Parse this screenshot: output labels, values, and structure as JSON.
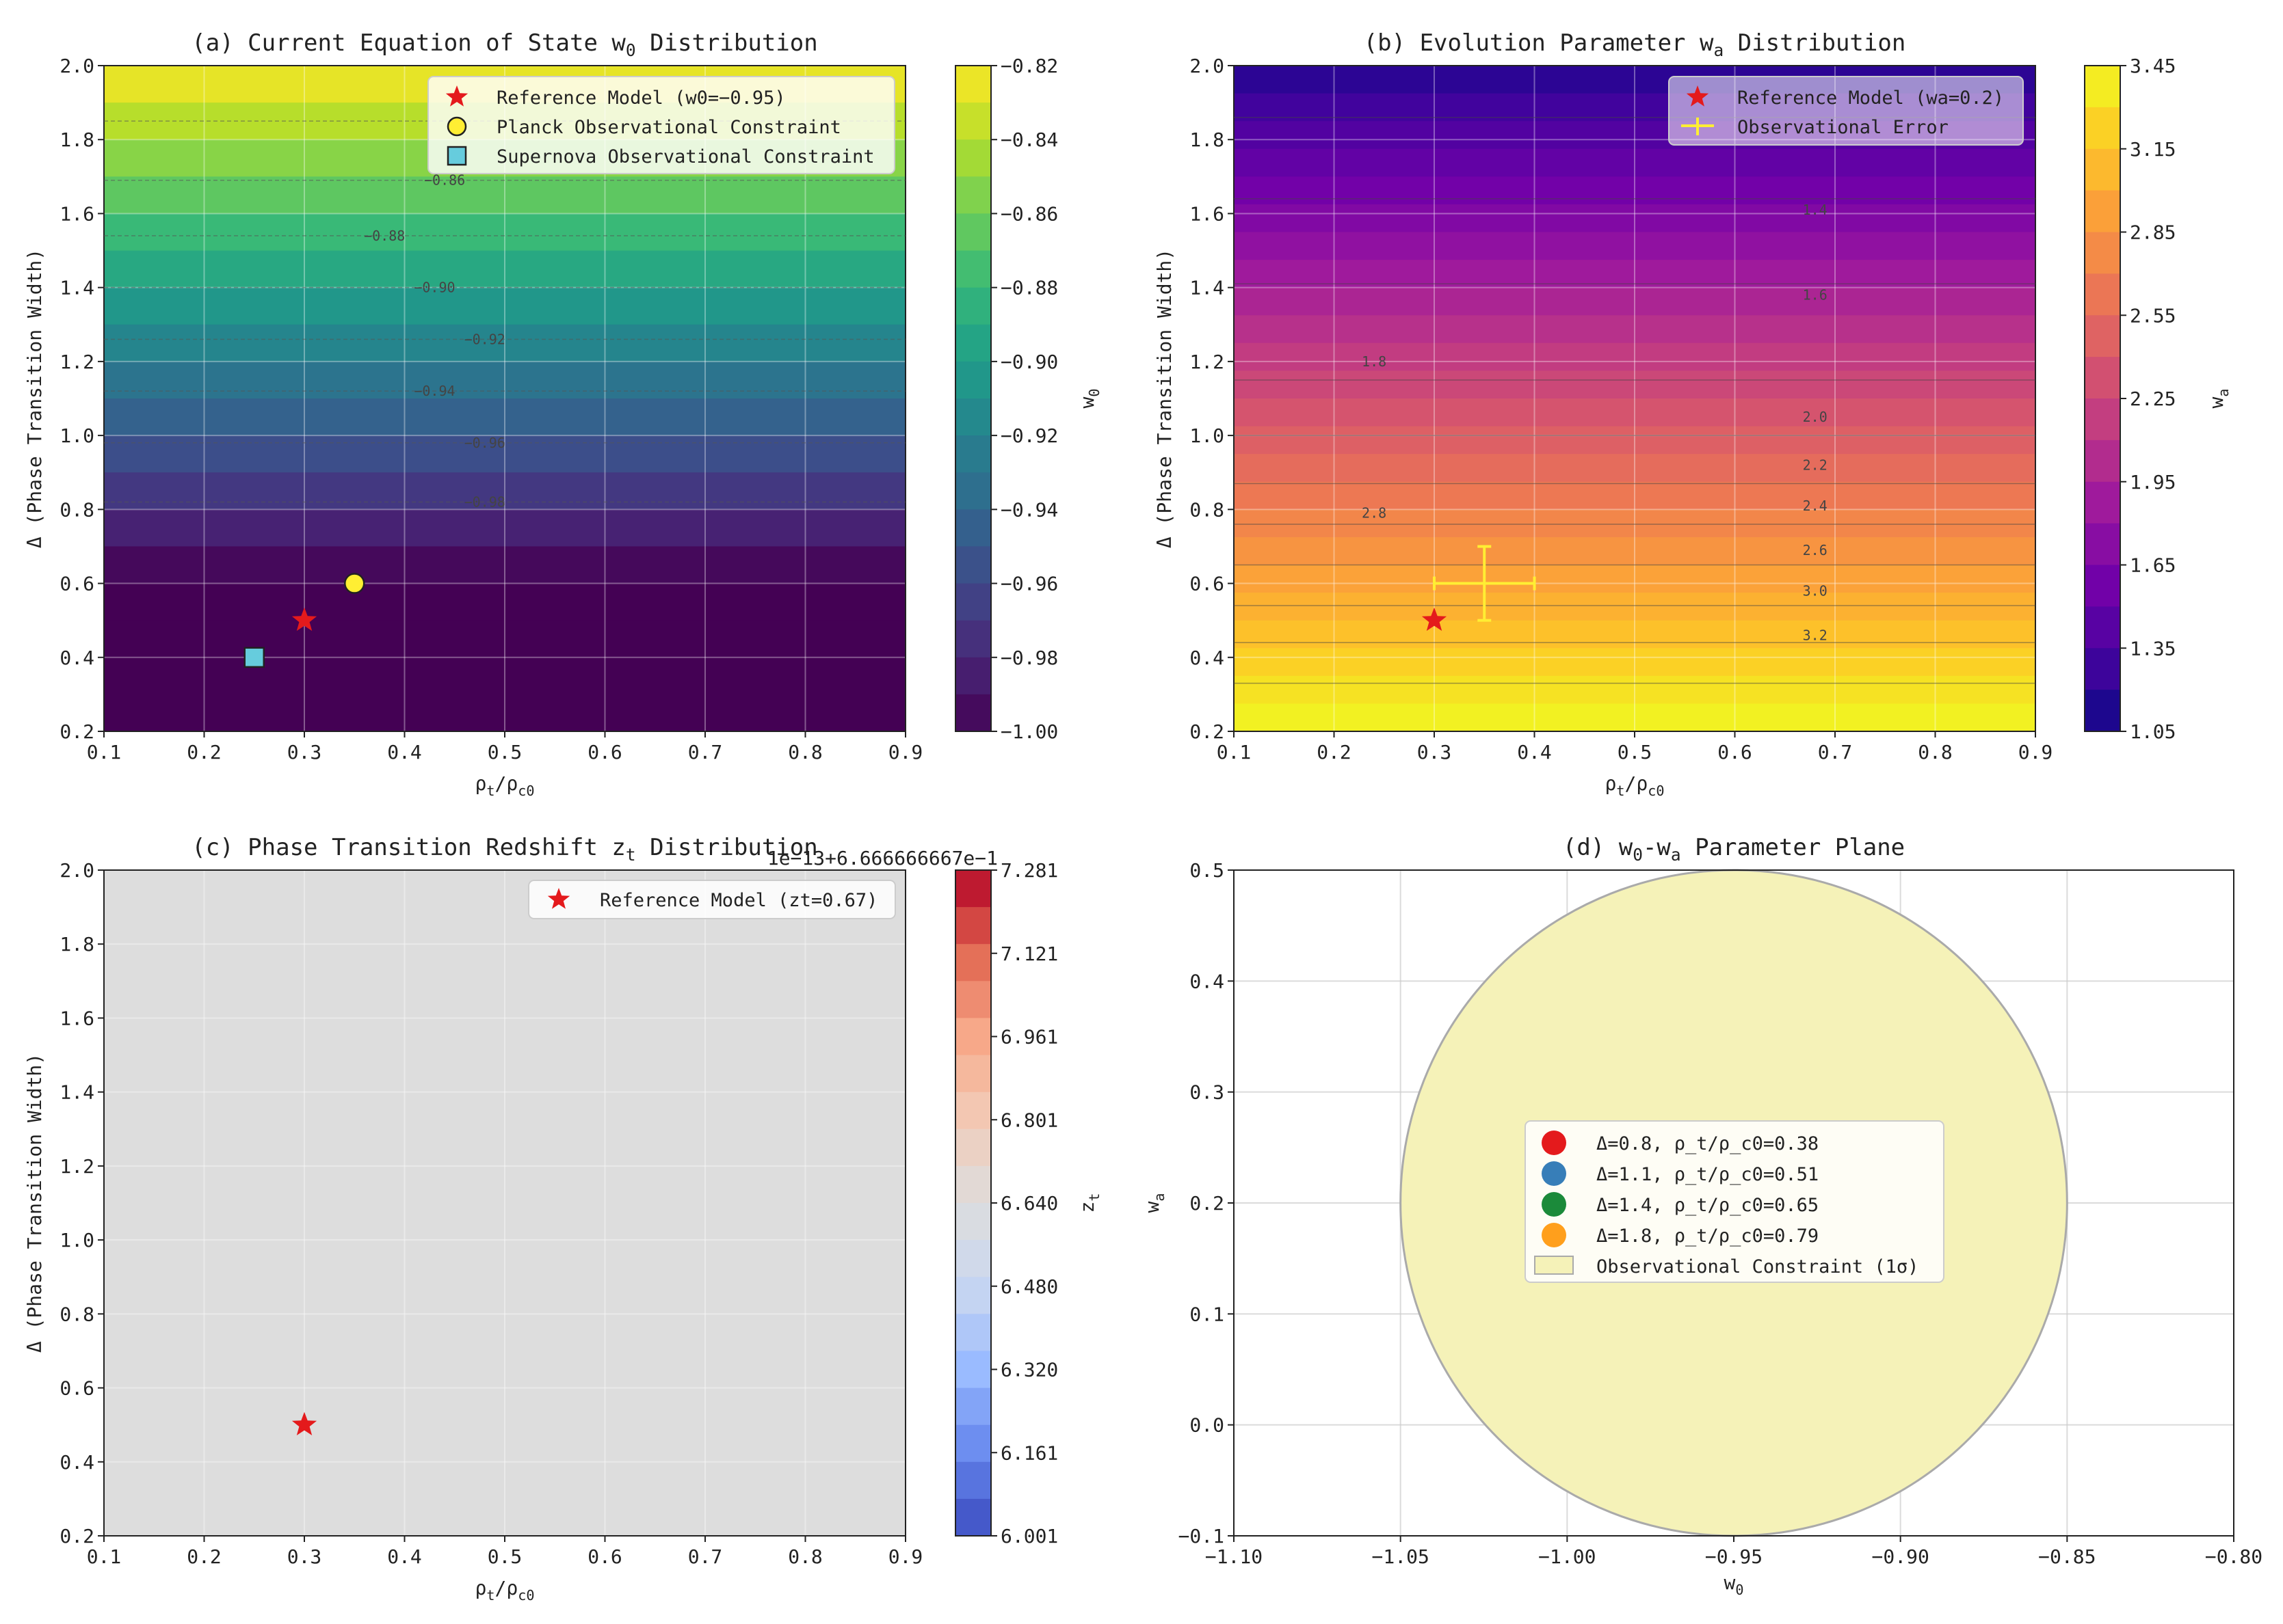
{
  "colors": {
    "viridis": [
      "#440154",
      "#482878",
      "#3e4989",
      "#31688e",
      "#26828e",
      "#1f9e89",
      "#35b779",
      "#6ece58",
      "#b5de2b",
      "#fde725"
    ],
    "plasma": [
      "#0d0887",
      "#46039f",
      "#7201a8",
      "#9c179e",
      "#bd3786",
      "#d8576b",
      "#ed7953",
      "#fb9f3a",
      "#fdca26",
      "#f0f921"
    ],
    "coolwarm": [
      "#3b4cc0",
      "#6788ee",
      "#9abbff",
      "#c9d7f0",
      "#dddddd",
      "#f2cbb7",
      "#f7a889",
      "#e26952",
      "#b40426"
    ],
    "marker_red": "#e41a1c",
    "planck_yellow": "#ffee33",
    "sn_cyan": "#66ccdd",
    "err_yellow": "#ffee33",
    "constraint_fill": "#f5f2b8",
    "pt_colors": [
      "#e41a1c",
      "#377eb8",
      "#1b8a3a",
      "#ff9f1c"
    ]
  },
  "chart_data": [
    {
      "id": "a",
      "type": "heatmap",
      "title": "(a) Current Equation of State w",
      "title_sub": "0",
      "title_end": " Distribution",
      "xlabel": "ρ",
      "xlabel_sub1": "t",
      "xlabel_mid": "/ρ",
      "xlabel_sub2": "c0",
      "ylabel": "Δ (Phase Transition Width)",
      "xlim": [
        0.1,
        0.9
      ],
      "ylim": [
        0.2,
        2.0
      ],
      "xticks": [
        "0.1",
        "0.2",
        "0.3",
        "0.4",
        "0.5",
        "0.6",
        "0.7",
        "0.8",
        "0.9"
      ],
      "yticks": [
        "0.2",
        "0.4",
        "0.6",
        "0.8",
        "1.0",
        "1.2",
        "1.4",
        "1.6",
        "1.8",
        "2.0"
      ],
      "value_range": [
        -1.0,
        -0.82
      ],
      "colorbar_label": "w",
      "colorbar_label_sub": "0",
      "colorbar_ticks": [
        "−0.82",
        "−0.84",
        "−0.86",
        "−0.88",
        "−0.90",
        "−0.92",
        "−0.94",
        "−0.96",
        "−0.98",
        "−1.00"
      ],
      "contour_labels": [
        "−0.86",
        "−0.88",
        "−0.90",
        "−0.92",
        "−0.94",
        "−0.96",
        "−0.98"
      ],
      "legend": {
        "location": "upper right",
        "entries": [
          "Reference Model (w0=−0.95)",
          "Planck Observational Constraint",
          "Supernova Observational Constraint"
        ]
      },
      "points": [
        {
          "name": "Reference Model (w0=−0.95)",
          "x": 0.3,
          "y": 0.5,
          "marker": "star"
        },
        {
          "name": "Planck Observational Constraint",
          "x": 0.35,
          "y": 0.6,
          "marker": "circle"
        },
        {
          "name": "Supernova Observational Constraint",
          "x": 0.25,
          "y": 0.4,
          "marker": "square"
        }
      ]
    },
    {
      "id": "b",
      "type": "heatmap",
      "title": "(b) Evolution Parameter w",
      "title_sub": "a",
      "title_end": " Distribution",
      "xlabel": "ρ",
      "xlabel_sub1": "t",
      "xlabel_mid": "/ρ",
      "xlabel_sub2": "c0",
      "ylabel": "Δ (Phase Transition Width)",
      "xlim": [
        0.1,
        0.9
      ],
      "ylim": [
        0.2,
        2.0
      ],
      "xticks": [
        "0.1",
        "0.2",
        "0.3",
        "0.4",
        "0.5",
        "0.6",
        "0.7",
        "0.8",
        "0.9"
      ],
      "yticks": [
        "0.2",
        "0.4",
        "0.6",
        "0.8",
        "1.0",
        "1.2",
        "1.4",
        "1.6",
        "1.8",
        "2.0"
      ],
      "value_range": [
        1.05,
        3.45
      ],
      "colorbar_label": "w",
      "colorbar_label_sub": "a",
      "colorbar_ticks": [
        "3.45",
        "3.15",
        "2.85",
        "2.55",
        "2.25",
        "1.95",
        "1.65",
        "1.35",
        "1.05"
      ],
      "contour_labels": [
        "1.4",
        "1.6",
        "1.8",
        "2.0",
        "2.2",
        "2.4",
        "2.6",
        "2.8",
        "3.0",
        "3.2"
      ],
      "legend": {
        "location": "upper right",
        "entries": [
          "Reference Model (wa=0.2)",
          "Observational Error"
        ]
      },
      "points": [
        {
          "name": "Reference Model (wa=0.2)",
          "x": 0.3,
          "y": 0.5,
          "marker": "star"
        }
      ],
      "errorbar": {
        "x": 0.35,
        "y": 0.6,
        "xerr": 0.05,
        "yerr": 0.1
      }
    },
    {
      "id": "c",
      "type": "heatmap",
      "title": "(c) Phase Transition Redshift z",
      "title_sub": "t",
      "title_end": " Distribution",
      "xlabel": "ρ",
      "xlabel_sub1": "t",
      "xlabel_mid": "/ρ",
      "xlabel_sub2": "c0",
      "ylabel": "Δ (Phase Transition Width)",
      "xlim": [
        0.1,
        0.9
      ],
      "ylim": [
        0.2,
        2.0
      ],
      "xticks": [
        "0.1",
        "0.2",
        "0.3",
        "0.4",
        "0.5",
        "0.6",
        "0.7",
        "0.8",
        "0.9"
      ],
      "yticks": [
        "0.2",
        "0.4",
        "0.6",
        "0.8",
        "1.0",
        "1.2",
        "1.4",
        "1.6",
        "1.8",
        "2.0"
      ],
      "colorbar_label": "z",
      "colorbar_label_sub": "t",
      "colorbar_offset": "1e−13+6.666666667e−1",
      "colorbar_ticks": [
        "7.281",
        "7.121",
        "6.961",
        "6.801",
        "6.640",
        "6.480",
        "6.320",
        "6.161",
        "6.001"
      ],
      "legend": {
        "location": "upper right",
        "entries": [
          "Reference Model (zt=0.67)"
        ]
      },
      "points": [
        {
          "name": "Reference Model (zt=0.67)",
          "x": 0.3,
          "y": 0.5,
          "marker": "star"
        }
      ]
    },
    {
      "id": "d",
      "type": "scatter",
      "title": "(d) w",
      "title_sub": "0",
      "title_mid": "-w",
      "title_sub2": "a",
      "title_end": " Parameter Plane",
      "xlabel": "w",
      "xlabel_sub1": "0",
      "ylabel": "w",
      "ylabel_sub": "a",
      "xlim": [
        -1.1,
        -0.8
      ],
      "ylim": [
        -0.1,
        0.5
      ],
      "xticks": [
        "−1.10",
        "−1.05",
        "−1.00",
        "−0.95",
        "−0.90",
        "−0.85",
        "−0.80"
      ],
      "yticks": [
        "−0.1",
        "0.0",
        "0.1",
        "0.2",
        "0.3",
        "0.4",
        "0.5"
      ],
      "constraint_ellipse": {
        "center_x": -0.95,
        "center_y": 0.2,
        "width": 0.2,
        "height": 0.6
      },
      "legend": {
        "location": "center",
        "entries": [
          "Δ=0.8, ρ_t/ρ_c0=0.38",
          "Δ=1.1, ρ_t/ρ_c0=0.51",
          "Δ=1.4, ρ_t/ρ_c0=0.65",
          "Δ=1.8, ρ_t/ρ_c0=0.79",
          "Observational Constraint (1σ)"
        ]
      }
    }
  ]
}
